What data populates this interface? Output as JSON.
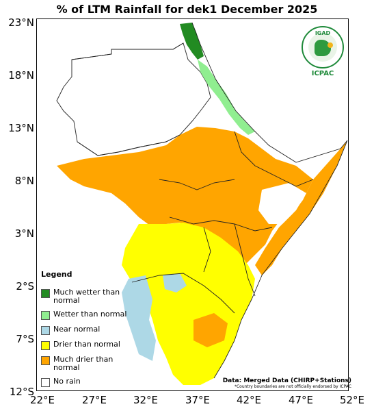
{
  "title": "% of LTM Rainfall for dek1 December 2025",
  "latitude_labels": [
    "23°N",
    "18°N",
    "13°N",
    "8°N",
    "3°N",
    "2°S",
    "7°S",
    "12°S"
  ],
  "longitude_labels": [
    "22°E",
    "27°E",
    "32°E",
    "37°E",
    "42°E",
    "47°E",
    "52°E"
  ],
  "legend": {
    "title": "Legend",
    "items": [
      {
        "label": "Much wetter than normal",
        "color": "#228b22"
      },
      {
        "label": "Wetter than normal",
        "color": "#90ee90"
      },
      {
        "label": "Near normal",
        "color": "#add8e6"
      },
      {
        "label": "Drier than normal",
        "color": "#ffff00"
      },
      {
        "label": "Much drier than normal",
        "color": "#ffa500"
      },
      {
        "label": "No rain",
        "color": "#ffffff"
      }
    ]
  },
  "logo": {
    "acronym": "IGAD",
    "name": "ICPAC"
  },
  "data_source": "Data: Merged Data (CHIRP+Stations)",
  "disclaimer": "*Country boundaries are not officially endorsed by ICPAC"
}
